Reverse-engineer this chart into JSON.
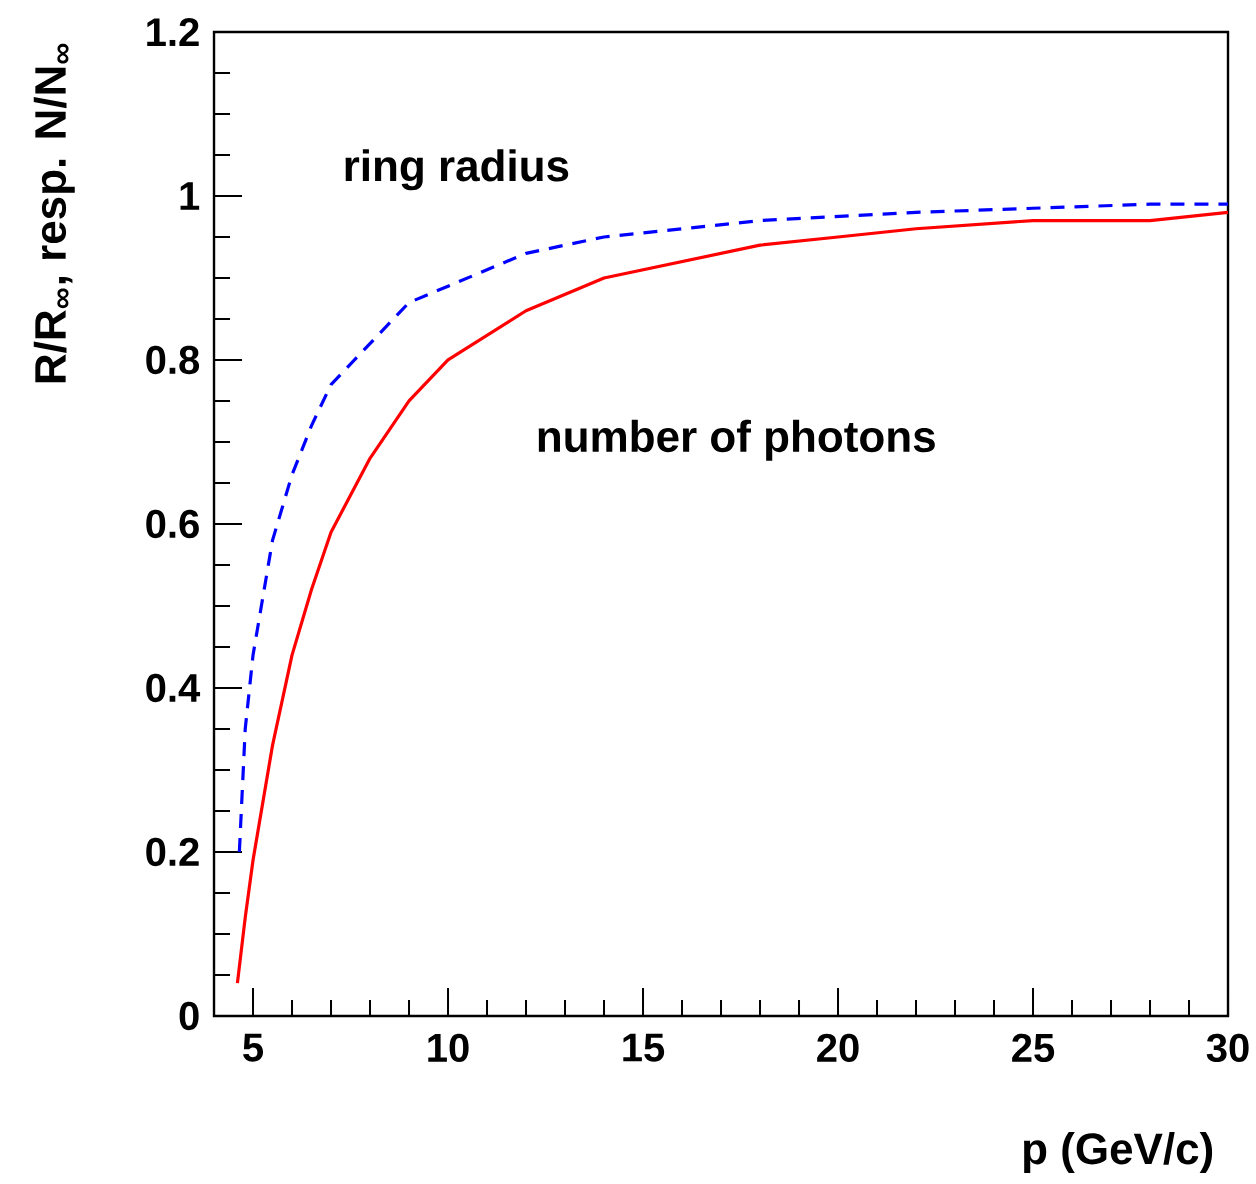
{
  "chart_data": {
    "type": "line",
    "xlabel": "p (GeV/c)",
    "ylabel": "R/R$_{∞}$, resp. N/N$_{∞}$",
    "xlim": [
      4,
      30
    ],
    "ylim": [
      0,
      1.2
    ],
    "xticks": [
      5,
      10,
      15,
      20,
      25,
      30
    ],
    "yticks": [
      0,
      0.2,
      0.4,
      0.6,
      0.8,
      1,
      1.2
    ],
    "grid": false,
    "legend": false,
    "series": [
      {
        "name": "ring radius",
        "color": "#0000ff",
        "line_style": "dashed",
        "x": [
          4.65,
          4.8,
          5,
          5.5,
          6,
          6.5,
          7,
          8,
          9,
          10,
          12,
          14,
          16,
          18,
          20,
          22,
          25,
          28,
          30
        ],
        "values": [
          0.2,
          0.35,
          0.44,
          0.58,
          0.66,
          0.72,
          0.77,
          0.82,
          0.87,
          0.89,
          0.93,
          0.95,
          0.96,
          0.97,
          0.975,
          0.98,
          0.985,
          0.99,
          0.99
        ]
      },
      {
        "name": "number of photons",
        "color": "#ff0000",
        "line_style": "solid",
        "x": [
          4.6,
          4.8,
          5,
          5.5,
          6,
          6.5,
          7,
          8,
          9,
          10,
          12,
          14,
          16,
          18,
          20,
          22,
          25,
          28,
          30
        ],
        "values": [
          0.04,
          0.12,
          0.19,
          0.33,
          0.44,
          0.52,
          0.59,
          0.68,
          0.75,
          0.8,
          0.86,
          0.9,
          0.92,
          0.94,
          0.95,
          0.96,
          0.97,
          0.97,
          0.98
        ]
      }
    ]
  }
}
